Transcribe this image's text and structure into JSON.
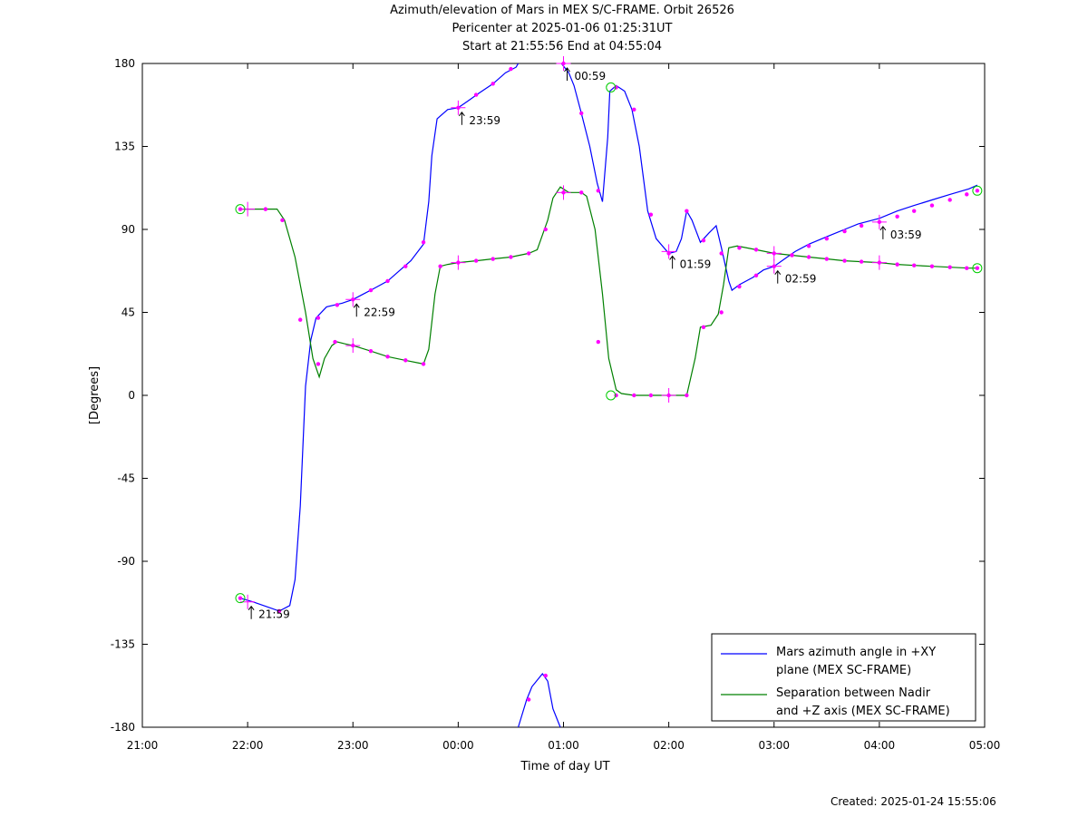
{
  "chart_data": {
    "type": "line",
    "title_lines": [
      "Azimuth/elevation of Mars in MEX S/C-FRAME.  Orbit 26526",
      "Pericenter at 2025-01-06 01:25:31UT",
      "Start at 21:55:56 End at 04:55:04"
    ],
    "xlabel": "Time of day UT",
    "ylabel": "[Degrees]",
    "x_unit": "hours since 21:00 UT",
    "xlim": [
      0,
      8
    ],
    "ylim": [
      -180,
      180
    ],
    "x_ticks": [
      {
        "v": 0,
        "label": "21:00"
      },
      {
        "v": 1,
        "label": "22:00"
      },
      {
        "v": 2,
        "label": "23:00"
      },
      {
        "v": 3,
        "label": "00:00"
      },
      {
        "v": 4,
        "label": "01:00"
      },
      {
        "v": 5,
        "label": "02:00"
      },
      {
        "v": 6,
        "label": "03:00"
      },
      {
        "v": 7,
        "label": "04:00"
      },
      {
        "v": 8,
        "label": "05:00"
      }
    ],
    "y_ticks": [
      {
        "v": 180,
        "label": "180"
      },
      {
        "v": 135,
        "label": "135"
      },
      {
        "v": 90,
        "label": "90"
      },
      {
        "v": 45,
        "label": "45"
      },
      {
        "v": 0,
        "label": "0"
      },
      {
        "v": -45,
        "label": "-45"
      },
      {
        "v": -90,
        "label": "-90"
      },
      {
        "v": -135,
        "label": "-135"
      },
      {
        "v": -180,
        "label": "-180"
      }
    ],
    "legend_position": "bottom-right",
    "series": [
      {
        "name": "Mars azimuth angle in +XY plane (MEX SC-FRAME)",
        "legend_lines": [
          "Mars azimuth angle in +XY",
          "plane (MEX SC-FRAME)"
        ],
        "color": "#0000ff",
        "points": [
          [
            0.93,
            -110
          ],
          [
            1.05,
            -112
          ],
          [
            1.2,
            -115
          ],
          [
            1.3,
            -117
          ],
          [
            1.4,
            -114
          ],
          [
            1.45,
            -100
          ],
          [
            1.5,
            -60
          ],
          [
            1.55,
            5
          ],
          [
            1.6,
            30
          ],
          [
            1.65,
            42
          ],
          [
            1.75,
            48
          ],
          [
            1.9,
            50
          ],
          [
            2.0,
            52
          ],
          [
            2.1,
            55
          ],
          [
            2.2,
            58
          ],
          [
            2.33,
            62
          ],
          [
            2.45,
            68
          ],
          [
            2.55,
            73
          ],
          [
            2.67,
            82
          ],
          [
            2.72,
            105
          ],
          [
            2.75,
            130
          ],
          [
            2.8,
            150
          ],
          [
            2.9,
            155
          ],
          [
            3.0,
            156
          ],
          [
            3.1,
            160
          ],
          [
            3.2,
            164
          ],
          [
            3.33,
            169
          ],
          [
            3.45,
            175
          ],
          [
            3.55,
            178
          ],
          [
            3.57,
            180
          ],
          null,
          [
            3.57,
            -180
          ],
          [
            3.65,
            -165
          ],
          [
            3.7,
            -158
          ],
          [
            3.8,
            -151
          ],
          [
            3.85,
            -155
          ],
          [
            3.9,
            -170
          ],
          [
            3.97,
            -180
          ],
          null,
          [
            3.98,
            180
          ],
          [
            4.05,
            175
          ],
          [
            4.1,
            168
          ],
          [
            4.17,
            153
          ],
          [
            4.25,
            135
          ],
          [
            4.32,
            115
          ],
          [
            4.37,
            105
          ],
          [
            4.42,
            140
          ],
          [
            4.44,
            165
          ],
          [
            4.5,
            168
          ],
          [
            4.58,
            165
          ],
          [
            4.65,
            155
          ],
          [
            4.72,
            135
          ],
          [
            4.8,
            100
          ],
          [
            4.88,
            85
          ],
          [
            5.0,
            77
          ],
          [
            5.07,
            78
          ],
          [
            5.12,
            85
          ],
          [
            5.17,
            100
          ],
          [
            5.22,
            95
          ],
          [
            5.3,
            83
          ],
          [
            5.38,
            88
          ],
          [
            5.45,
            92
          ],
          [
            5.5,
            80
          ],
          [
            5.57,
            62
          ],
          [
            5.6,
            57
          ],
          [
            5.67,
            60
          ],
          [
            5.8,
            64
          ],
          [
            5.9,
            68
          ],
          [
            6.0,
            70
          ],
          [
            6.1,
            74
          ],
          [
            6.2,
            78
          ],
          [
            6.33,
            82
          ],
          [
            6.5,
            86
          ],
          [
            6.67,
            90
          ],
          [
            6.8,
            93
          ],
          [
            7.0,
            96
          ],
          [
            7.17,
            100
          ],
          [
            7.33,
            103
          ],
          [
            7.5,
            106
          ],
          [
            7.67,
            109
          ],
          [
            7.85,
            112
          ],
          [
            7.93,
            114
          ]
        ],
        "markers": [
          [
            0.93,
            -110
          ],
          [
            1.3,
            -117
          ],
          [
            1.67,
            42
          ],
          [
            1.85,
            49
          ],
          [
            2.0,
            52
          ],
          [
            2.17,
            57
          ],
          [
            2.33,
            62
          ],
          [
            2.5,
            70
          ],
          [
            2.67,
            83
          ],
          [
            3.0,
            156
          ],
          [
            3.17,
            163
          ],
          [
            3.33,
            169
          ],
          [
            3.5,
            177
          ],
          [
            3.67,
            -165
          ],
          [
            3.83,
            -152
          ],
          [
            4.0,
            180
          ],
          [
            4.17,
            153
          ],
          [
            4.33,
            111
          ],
          [
            4.5,
            167
          ],
          [
            4.67,
            155
          ],
          [
            4.83,
            98
          ],
          [
            5.0,
            77
          ],
          [
            5.17,
            100
          ],
          [
            5.33,
            84
          ],
          [
            5.5,
            77
          ],
          [
            5.67,
            59
          ],
          [
            5.83,
            65
          ],
          [
            6.0,
            70
          ],
          [
            6.17,
            76
          ],
          [
            6.33,
            81
          ],
          [
            6.5,
            85
          ],
          [
            6.67,
            89
          ],
          [
            6.83,
            92
          ],
          [
            7.0,
            94
          ],
          [
            7.17,
            97
          ],
          [
            7.33,
            100
          ],
          [
            7.5,
            103
          ],
          [
            7.67,
            106
          ],
          [
            7.83,
            109
          ],
          [
            7.93,
            111
          ]
        ],
        "hour_marks": [
          [
            1.0,
            -112
          ],
          [
            2.0,
            52
          ],
          [
            3.0,
            156
          ],
          [
            4.0,
            180
          ],
          [
            5.0,
            78
          ],
          [
            6.0,
            70
          ],
          [
            7.0,
            94
          ]
        ]
      },
      {
        "name": "Separation between Nadir and +Z axis (MEX SC-FRAME)",
        "legend_lines": [
          "Separation between Nadir",
          "and +Z axis (MEX SC-FRAME)"
        ],
        "color": "#008000",
        "points": [
          [
            0.93,
            101
          ],
          [
            1.05,
            101
          ],
          [
            1.15,
            101
          ],
          [
            1.28,
            101
          ],
          [
            1.35,
            95
          ],
          [
            1.45,
            75
          ],
          [
            1.55,
            45
          ],
          [
            1.62,
            20
          ],
          [
            1.68,
            10
          ],
          [
            1.73,
            20
          ],
          [
            1.8,
            27
          ],
          [
            1.85,
            29
          ],
          [
            1.92,
            28
          ],
          [
            2.0,
            27
          ],
          [
            2.17,
            24
          ],
          [
            2.33,
            21
          ],
          [
            2.5,
            19
          ],
          [
            2.67,
            17
          ],
          [
            2.72,
            25
          ],
          [
            2.78,
            55
          ],
          [
            2.83,
            70
          ],
          [
            2.9,
            71
          ],
          [
            3.0,
            72
          ],
          [
            3.17,
            73
          ],
          [
            3.33,
            74
          ],
          [
            3.5,
            75
          ],
          [
            3.67,
            77
          ],
          [
            3.75,
            79
          ],
          [
            3.85,
            95
          ],
          [
            3.9,
            107
          ],
          [
            3.97,
            113
          ],
          [
            4.05,
            110
          ],
          [
            4.17,
            110
          ],
          [
            4.22,
            108
          ],
          [
            4.3,
            90
          ],
          [
            4.37,
            55
          ],
          [
            4.43,
            20
          ],
          [
            4.5,
            3
          ],
          [
            4.55,
            1
          ],
          [
            4.67,
            0
          ],
          [
            4.83,
            0
          ],
          [
            5.0,
            0
          ],
          [
            5.17,
            0
          ],
          [
            5.25,
            20
          ],
          [
            5.3,
            37
          ],
          [
            5.4,
            38
          ],
          [
            5.47,
            44
          ],
          [
            5.52,
            60
          ],
          [
            5.57,
            80
          ],
          [
            5.65,
            81
          ],
          [
            5.83,
            79
          ],
          [
            6.0,
            77
          ],
          [
            6.17,
            76
          ],
          [
            6.33,
            75
          ],
          [
            6.5,
            74
          ],
          [
            6.67,
            73
          ],
          [
            6.83,
            72.5
          ],
          [
            7.0,
            72
          ],
          [
            7.17,
            71
          ],
          [
            7.33,
            70.5
          ],
          [
            7.5,
            70
          ],
          [
            7.67,
            69.5
          ],
          [
            7.85,
            69
          ],
          [
            7.93,
            69
          ]
        ],
        "markers": [
          [
            0.93,
            101
          ],
          [
            1.17,
            101
          ],
          [
            1.33,
            95
          ],
          [
            1.5,
            41
          ],
          [
            1.67,
            17
          ],
          [
            1.83,
            29
          ],
          [
            2.0,
            27
          ],
          [
            2.17,
            24
          ],
          [
            2.33,
            21
          ],
          [
            2.5,
            19
          ],
          [
            2.67,
            17
          ],
          [
            2.83,
            70
          ],
          [
            3.0,
            72
          ],
          [
            3.17,
            73
          ],
          [
            3.33,
            74
          ],
          [
            3.5,
            75
          ],
          [
            3.67,
            77
          ],
          [
            3.83,
            90
          ],
          [
            4.0,
            110
          ],
          [
            4.17,
            110
          ],
          [
            4.33,
            29
          ],
          [
            4.5,
            0
          ],
          [
            4.67,
            0
          ],
          [
            4.83,
            0
          ],
          [
            5.0,
            0
          ],
          [
            5.17,
            0
          ],
          [
            5.33,
            37
          ],
          [
            5.5,
            45
          ],
          [
            5.67,
            80
          ],
          [
            5.83,
            79
          ],
          [
            6.0,
            77
          ],
          [
            6.17,
            76
          ],
          [
            6.33,
            75
          ],
          [
            6.5,
            74
          ],
          [
            6.67,
            73
          ],
          [
            6.83,
            72.5
          ],
          [
            7.0,
            72
          ],
          [
            7.17,
            71
          ],
          [
            7.33,
            70.5
          ],
          [
            7.5,
            70
          ],
          [
            7.67,
            69.5
          ],
          [
            7.83,
            69
          ],
          [
            7.93,
            69
          ]
        ],
        "hour_marks": [
          [
            1.0,
            101
          ],
          [
            2.0,
            27
          ],
          [
            3.0,
            72
          ],
          [
            4.0,
            110
          ],
          [
            5.0,
            0
          ],
          [
            6.0,
            77
          ],
          [
            7.0,
            72
          ]
        ]
      }
    ],
    "endpoint_circles": [
      [
        0.93,
        -110
      ],
      [
        0.93,
        101
      ],
      [
        4.45,
        167
      ],
      [
        4.45,
        0
      ],
      [
        7.93,
        111
      ],
      [
        7.93,
        69
      ]
    ],
    "annotations": [
      {
        "label": "21:59",
        "x": 1.0,
        "y": -112
      },
      {
        "label": "22:59",
        "x": 2.0,
        "y": 52
      },
      {
        "label": "23:59",
        "x": 3.0,
        "y": 156
      },
      {
        "label": "00:59",
        "x": 4.0,
        "y": 180
      },
      {
        "label": "01:59",
        "x": 5.0,
        "y": 78
      },
      {
        "label": "02:59",
        "x": 6.0,
        "y": 70
      },
      {
        "label": "03:59",
        "x": 7.0,
        "y": 94
      }
    ]
  },
  "footer": "Created: 2025-01-24 15:55:06"
}
